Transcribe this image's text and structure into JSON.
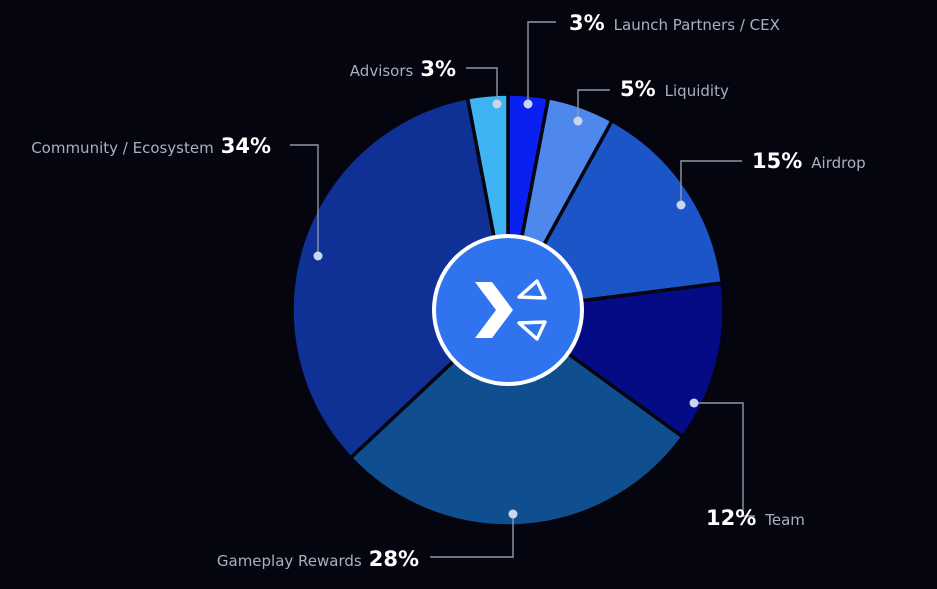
{
  "chart_data": {
    "type": "pie",
    "title": "",
    "slices": [
      {
        "label": "Launch Partners / CEX",
        "value": 3,
        "display": "3%",
        "color": "#0a20f0"
      },
      {
        "label": "Liquidity",
        "value": 5,
        "display": "5%",
        "color": "#4f88ec"
      },
      {
        "label": "Airdrop",
        "value": 15,
        "display": "15%",
        "color": "#1b55c8"
      },
      {
        "label": "Team",
        "value": 12,
        "display": "12%",
        "color": "#050b85"
      },
      {
        "label": "Gameplay Rewards",
        "value": 28,
        "display": "28%",
        "color": "#0f4f90"
      },
      {
        "label": "Community / Ecosystem",
        "value": 34,
        "display": "34%",
        "color": "#0f3095"
      },
      {
        "label": "Advisors",
        "value": 3,
        "display": "3%",
        "color": "#3fb4f5"
      }
    ],
    "legend": "callouts",
    "logo": "x-logo-icon",
    "colors": {
      "background": "#04050f",
      "logo_circle": "#2f74ee",
      "slice_border": "#04050f"
    }
  }
}
